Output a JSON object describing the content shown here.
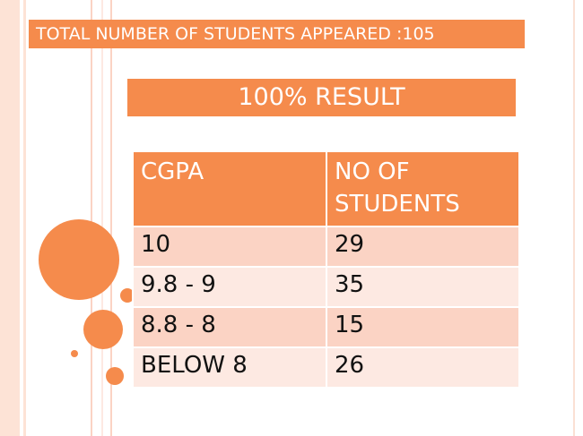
{
  "header": {
    "title": "TOTAL NUMBER OF STUDENTS APPEARED :105"
  },
  "banner": {
    "title": "100% RESULT"
  },
  "table": {
    "columns": [
      "CGPA",
      "NO OF STUDENTS"
    ],
    "rows": [
      [
        "10",
        "29"
      ],
      [
        "9.8 - 9",
        "35"
      ],
      [
        "8.8 - 8",
        "15"
      ],
      [
        "BELOW 8",
        "26"
      ]
    ]
  }
}
